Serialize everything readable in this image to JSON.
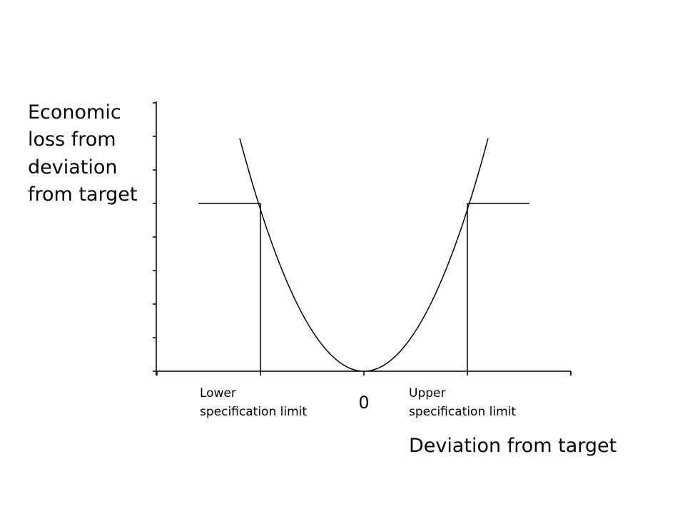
{
  "chart_data": {
    "type": "line",
    "title": "",
    "ylabel_lines": [
      "Economic",
      "loss from",
      "deviation",
      "from target"
    ],
    "xlabel": "Deviation from target",
    "x_tick_labels": [
      "",
      "",
      "0",
      "",
      ""
    ],
    "x_ticks": [
      -2,
      -1,
      0,
      1,
      2
    ],
    "xlim": [
      -2,
      2
    ],
    "ylim": [
      0,
      8
    ],
    "y_ticks": [
      0,
      1,
      2,
      3,
      4,
      5,
      6,
      7,
      8
    ],
    "y_tick_labels_visible": false,
    "grid": false,
    "series": [
      {
        "type": "quadratic-loss",
        "x_range": [
          -1.2,
          1.2
        ],
        "coefficient": 4.82
      }
    ],
    "spec_limits": {
      "lower": {
        "x": -1,
        "y": 5,
        "label_lines": [
          "Lower",
          "specification limit"
        ]
      },
      "upper": {
        "x": 1,
        "y": 5,
        "label_lines": [
          "Upper",
          "specification limit"
        ]
      },
      "step_x_range": [
        -1.6,
        1.6
      ]
    },
    "colors": {
      "line": "#000000",
      "background": "#ffffff"
    }
  }
}
